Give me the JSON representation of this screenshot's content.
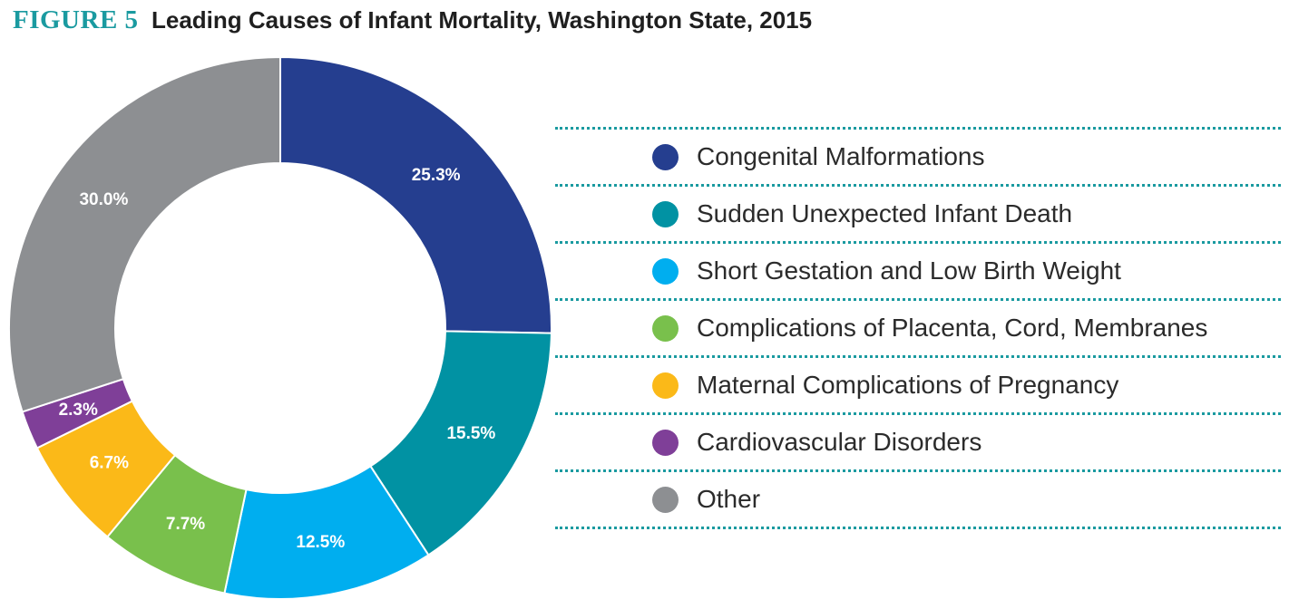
{
  "header": {
    "figure_label": "FIGURE 5",
    "title": "Leading Causes of Infant Mortality, Washington State, 2015"
  },
  "chart_data": {
    "type": "pie",
    "title": "Leading Causes of Infant Mortality, Washington State, 2015",
    "donut": true,
    "unit": "%",
    "start": "12 o'clock, clockwise",
    "legend_position": "right",
    "slices": [
      {
        "label": "Congenital Malformations",
        "value": 25.3,
        "display": "25.3%",
        "color": "#253e8f"
      },
      {
        "label": "Sudden Unexpected Infant Death",
        "value": 15.5,
        "display": "15.5%",
        "color": "#0192a3"
      },
      {
        "label": "Short Gestation and Low Birth Weight",
        "value": 12.5,
        "display": "12.5%",
        "color": "#00aeef"
      },
      {
        "label": "Complications of Placenta, Cord, Membranes",
        "value": 7.7,
        "display": "7.7%",
        "color": "#79c04c"
      },
      {
        "label": "Maternal Complications of Pregnancy",
        "value": 6.7,
        "display": "6.7%",
        "color": "#fbb918"
      },
      {
        "label": "Cardiovascular Disorders",
        "value": 2.3,
        "display": "2.3%",
        "color": "#7f3f98"
      },
      {
        "label": "Other",
        "value": 30.0,
        "display": "30.0%",
        "color": "#8d8f92"
      }
    ]
  }
}
